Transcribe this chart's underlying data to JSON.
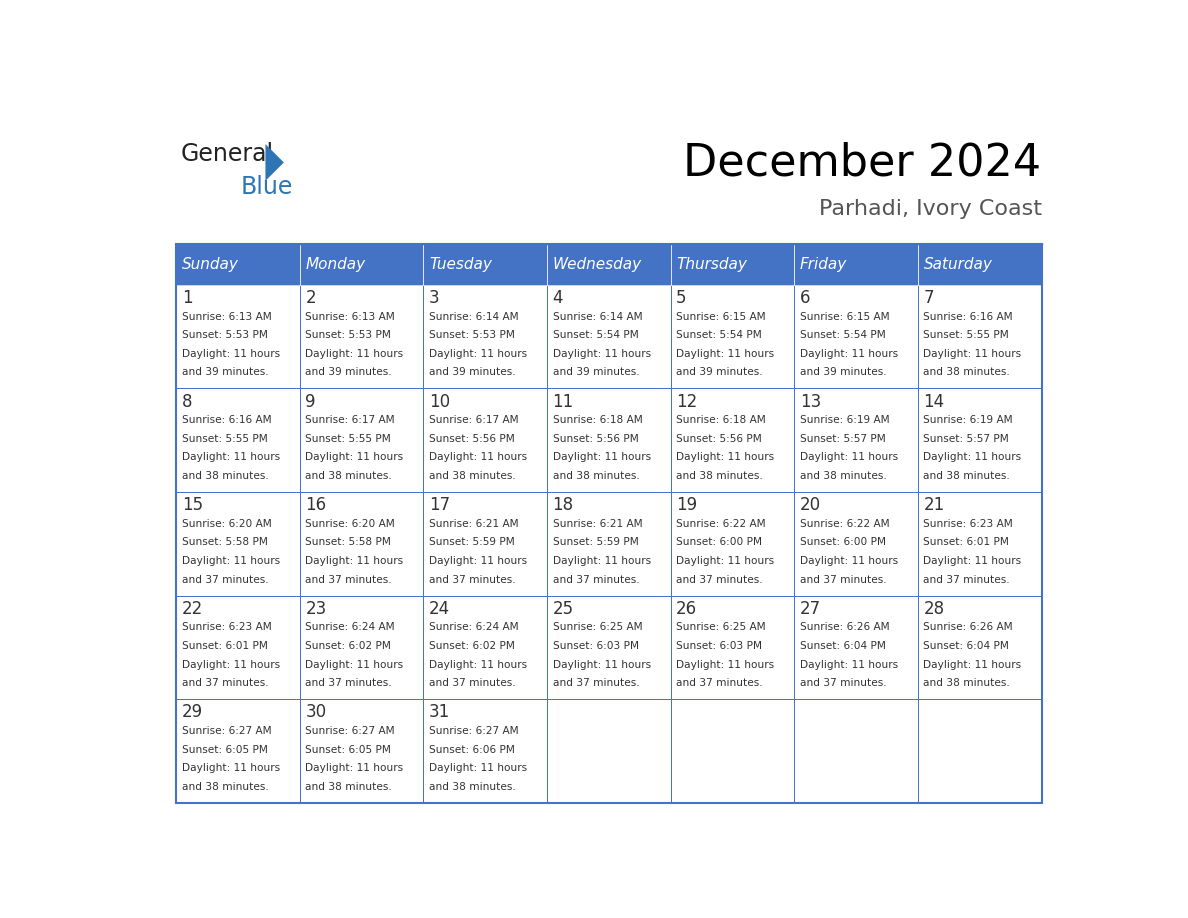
{
  "title": "December 2024",
  "subtitle": "Parhadi, Ivory Coast",
  "header_color": "#4472C4",
  "header_text_color": "#FFFFFF",
  "cell_bg_color": "#FFFFFF",
  "border_color": "#4472C4",
  "text_color": "#333333",
  "days_of_week": [
    "Sunday",
    "Monday",
    "Tuesday",
    "Wednesday",
    "Thursday",
    "Friday",
    "Saturday"
  ],
  "weeks": [
    [
      {
        "day": 1,
        "sunrise": "6:13 AM",
        "sunset": "5:53 PM",
        "daylight_hours": 11,
        "daylight_minutes": 39
      },
      {
        "day": 2,
        "sunrise": "6:13 AM",
        "sunset": "5:53 PM",
        "daylight_hours": 11,
        "daylight_minutes": 39
      },
      {
        "day": 3,
        "sunrise": "6:14 AM",
        "sunset": "5:53 PM",
        "daylight_hours": 11,
        "daylight_minutes": 39
      },
      {
        "day": 4,
        "sunrise": "6:14 AM",
        "sunset": "5:54 PM",
        "daylight_hours": 11,
        "daylight_minutes": 39
      },
      {
        "day": 5,
        "sunrise": "6:15 AM",
        "sunset": "5:54 PM",
        "daylight_hours": 11,
        "daylight_minutes": 39
      },
      {
        "day": 6,
        "sunrise": "6:15 AM",
        "sunset": "5:54 PM",
        "daylight_hours": 11,
        "daylight_minutes": 39
      },
      {
        "day": 7,
        "sunrise": "6:16 AM",
        "sunset": "5:55 PM",
        "daylight_hours": 11,
        "daylight_minutes": 38
      }
    ],
    [
      {
        "day": 8,
        "sunrise": "6:16 AM",
        "sunset": "5:55 PM",
        "daylight_hours": 11,
        "daylight_minutes": 38
      },
      {
        "day": 9,
        "sunrise": "6:17 AM",
        "sunset": "5:55 PM",
        "daylight_hours": 11,
        "daylight_minutes": 38
      },
      {
        "day": 10,
        "sunrise": "6:17 AM",
        "sunset": "5:56 PM",
        "daylight_hours": 11,
        "daylight_minutes": 38
      },
      {
        "day": 11,
        "sunrise": "6:18 AM",
        "sunset": "5:56 PM",
        "daylight_hours": 11,
        "daylight_minutes": 38
      },
      {
        "day": 12,
        "sunrise": "6:18 AM",
        "sunset": "5:56 PM",
        "daylight_hours": 11,
        "daylight_minutes": 38
      },
      {
        "day": 13,
        "sunrise": "6:19 AM",
        "sunset": "5:57 PM",
        "daylight_hours": 11,
        "daylight_minutes": 38
      },
      {
        "day": 14,
        "sunrise": "6:19 AM",
        "sunset": "5:57 PM",
        "daylight_hours": 11,
        "daylight_minutes": 38
      }
    ],
    [
      {
        "day": 15,
        "sunrise": "6:20 AM",
        "sunset": "5:58 PM",
        "daylight_hours": 11,
        "daylight_minutes": 37
      },
      {
        "day": 16,
        "sunrise": "6:20 AM",
        "sunset": "5:58 PM",
        "daylight_hours": 11,
        "daylight_minutes": 37
      },
      {
        "day": 17,
        "sunrise": "6:21 AM",
        "sunset": "5:59 PM",
        "daylight_hours": 11,
        "daylight_minutes": 37
      },
      {
        "day": 18,
        "sunrise": "6:21 AM",
        "sunset": "5:59 PM",
        "daylight_hours": 11,
        "daylight_minutes": 37
      },
      {
        "day": 19,
        "sunrise": "6:22 AM",
        "sunset": "6:00 PM",
        "daylight_hours": 11,
        "daylight_minutes": 37
      },
      {
        "day": 20,
        "sunrise": "6:22 AM",
        "sunset": "6:00 PM",
        "daylight_hours": 11,
        "daylight_minutes": 37
      },
      {
        "day": 21,
        "sunrise": "6:23 AM",
        "sunset": "6:01 PM",
        "daylight_hours": 11,
        "daylight_minutes": 37
      }
    ],
    [
      {
        "day": 22,
        "sunrise": "6:23 AM",
        "sunset": "6:01 PM",
        "daylight_hours": 11,
        "daylight_minutes": 37
      },
      {
        "day": 23,
        "sunrise": "6:24 AM",
        "sunset": "6:02 PM",
        "daylight_hours": 11,
        "daylight_minutes": 37
      },
      {
        "day": 24,
        "sunrise": "6:24 AM",
        "sunset": "6:02 PM",
        "daylight_hours": 11,
        "daylight_minutes": 37
      },
      {
        "day": 25,
        "sunrise": "6:25 AM",
        "sunset": "6:03 PM",
        "daylight_hours": 11,
        "daylight_minutes": 37
      },
      {
        "day": 26,
        "sunrise": "6:25 AM",
        "sunset": "6:03 PM",
        "daylight_hours": 11,
        "daylight_minutes": 37
      },
      {
        "day": 27,
        "sunrise": "6:26 AM",
        "sunset": "6:04 PM",
        "daylight_hours": 11,
        "daylight_minutes": 37
      },
      {
        "day": 28,
        "sunrise": "6:26 AM",
        "sunset": "6:04 PM",
        "daylight_hours": 11,
        "daylight_minutes": 38
      }
    ],
    [
      {
        "day": 29,
        "sunrise": "6:27 AM",
        "sunset": "6:05 PM",
        "daylight_hours": 11,
        "daylight_minutes": 38
      },
      {
        "day": 30,
        "sunrise": "6:27 AM",
        "sunset": "6:05 PM",
        "daylight_hours": 11,
        "daylight_minutes": 38
      },
      {
        "day": 31,
        "sunrise": "6:27 AM",
        "sunset": "6:06 PM",
        "daylight_hours": 11,
        "daylight_minutes": 38
      },
      null,
      null,
      null,
      null
    ]
  ],
  "logo_text_general": "General",
  "logo_text_blue": "Blue",
  "logo_color_general": "#222222",
  "logo_color_blue": "#2E75B6",
  "logo_triangle_color": "#2E75B6"
}
